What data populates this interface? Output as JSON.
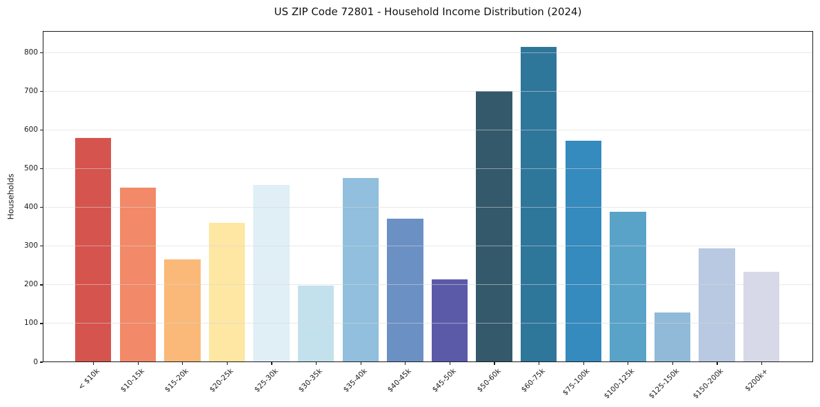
{
  "chart_data": {
    "type": "bar",
    "title": "US ZIP Code 72801 - Household Income Distribution (2024)",
    "xlabel": "",
    "ylabel": "Households",
    "ylim": [
      0,
      856
    ],
    "yticks": [
      0,
      100,
      200,
      300,
      400,
      500,
      600,
      700,
      800
    ],
    "grid": true,
    "legend": "none",
    "categories": [
      "< $10k",
      "$10-15k",
      "$15-20k",
      "$20-25k",
      "$25-30k",
      "$30-35k",
      "$35-40k",
      "$40-45k",
      "$45-50k",
      "$50-60k",
      "$60-75k",
      "$75-100k",
      "$100-125k",
      "$125-150k",
      "$150-200k",
      "$200k+"
    ],
    "values": [
      578,
      450,
      264,
      359,
      457,
      196,
      474,
      370,
      213,
      699,
      814,
      570,
      387,
      126,
      292,
      232
    ],
    "bar_colors": [
      "#d5544e",
      "#f28968",
      "#fab978",
      "#fde7a3",
      "#e0eff6",
      "#c3e1ed",
      "#91bfdd",
      "#6b90c4",
      "#5b5aa9",
      "#34596b",
      "#2f769b",
      "#358abe",
      "#59a3c9",
      "#90bad8",
      "#b8c9e1",
      "#d7d9e8"
    ],
    "bar_width_frac": 0.8
  },
  "colors": {
    "background": "#ffffff",
    "spine": "#1a1a1a",
    "grid": "#e3e3e3",
    "text": "#1a1a1a"
  }
}
